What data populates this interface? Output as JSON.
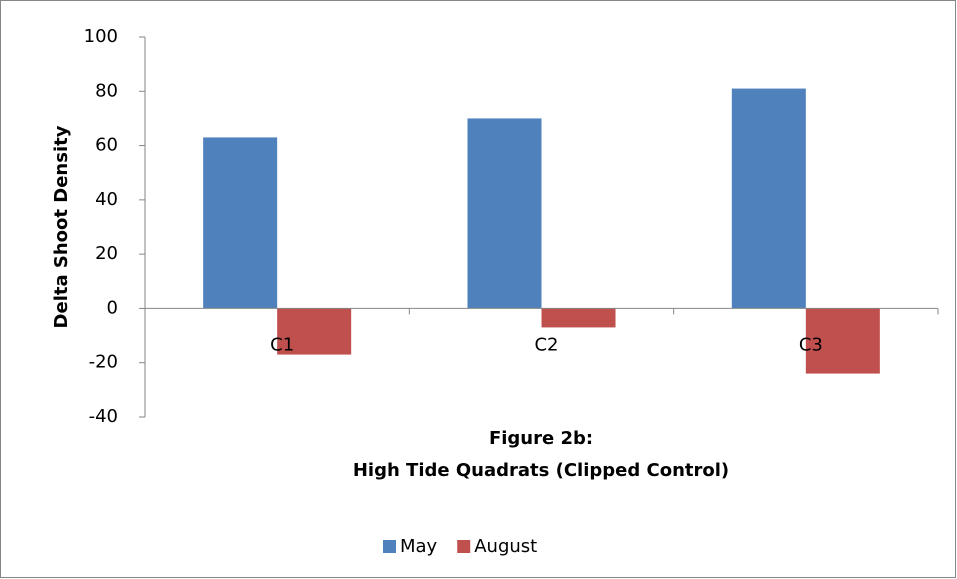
{
  "chart_data": {
    "type": "bar",
    "title_lines": [
      "Figure 2b:",
      "High Tide Quadrats (Clipped Control)"
    ],
    "ylabel": "Delta Shoot Density",
    "categories": [
      "C1",
      "C2",
      "C3"
    ],
    "series": [
      {
        "name": "May",
        "color": "#4f81bd",
        "values": [
          63,
          70,
          81
        ]
      },
      {
        "name": "August",
        "color": "#c0504d",
        "values": [
          -17,
          -7,
          -24
        ]
      }
    ],
    "ylim": [
      -40,
      100
    ],
    "yticks": [
      -40,
      -20,
      0,
      20,
      40,
      60,
      80,
      100
    ],
    "grid": false,
    "legend": "bottom"
  }
}
